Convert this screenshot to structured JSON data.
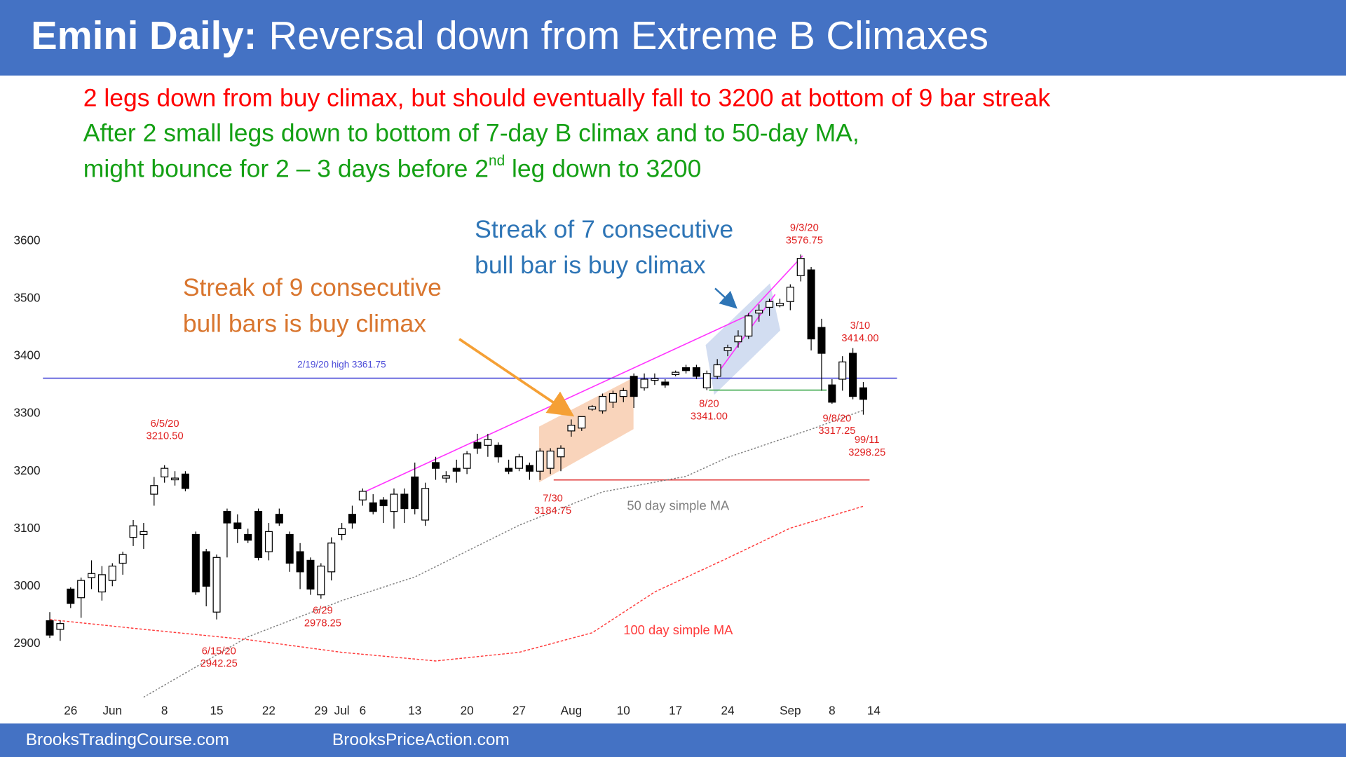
{
  "header": {
    "bold": "Emini Daily:",
    "rest": "Reversal down from Extreme B Climaxes"
  },
  "notes": [
    "2 legs down from buy climax, but should eventually fall to 3200 at bottom of 9 bar streak",
    "After 2 small legs down to bottom of 7-day B climax and to 50-day MA,",
    [
      "might bounce for 2 – 3 days before 2",
      "nd",
      " leg down to 3200"
    ]
  ],
  "callouts": [
    [
      "Streak of 9 consecutive",
      "bull bars is buy climax"
    ],
    [
      "Streak of 7 consecutive",
      "bull bar  is buy climax"
    ]
  ],
  "footer": [
    "BrooksTradingCourse.com",
    "BrooksPriceAction.com"
  ],
  "chart_data": {
    "type": "candlestick",
    "categories": [
      null,
      null,
      "26",
      null,
      null,
      null,
      "Jun",
      null,
      null,
      null,
      null,
      "8",
      null,
      null,
      null,
      null,
      "15",
      null,
      null,
      null,
      null,
      "22",
      null,
      null,
      null,
      null,
      "29",
      null,
      "Jul",
      null,
      "6",
      null,
      null,
      null,
      null,
      "13",
      null,
      null,
      null,
      null,
      "20",
      null,
      null,
      null,
      null,
      "27",
      null,
      null,
      null,
      null,
      "Aug",
      null,
      null,
      null,
      null,
      "10",
      null,
      null,
      null,
      null,
      "17",
      null,
      null,
      null,
      null,
      "24",
      null,
      null,
      null,
      null,
      null,
      "Sep",
      null,
      null,
      null,
      "8",
      null,
      null,
      null,
      "14"
    ],
    "open": [
      2940,
      2925,
      2995,
      2980,
      3015,
      2990,
      3010,
      3040,
      3085,
      3090,
      3160,
      3190,
      3185,
      3195,
      3090,
      3060,
      2955,
      3130,
      3110,
      3090,
      3130,
      3060,
      3125,
      3090,
      3060,
      3045,
      2985,
      3025,
      3090,
      3125,
      3150,
      3145,
      3150,
      3130,
      3160,
      3190,
      3115,
      3215,
      3188,
      3205,
      3205,
      3250,
      3245,
      3245,
      3205,
      3205,
      3210,
      3200,
      3205,
      3225,
      3270,
      3275,
      3308,
      3305,
      3320,
      3330,
      3365,
      3345,
      3358,
      3355,
      3368,
      3380,
      3380,
      3345,
      3365,
      3410,
      3425,
      3435,
      3475,
      3485,
      3488,
      3495,
      3540,
      3550,
      3450,
      3350,
      3360,
      3405,
      3345,
      null
    ],
    "high": [
      2955,
      2940,
      2998,
      3015,
      3045,
      3035,
      3040,
      3060,
      3115,
      3110,
      3190,
      3210.5,
      3200,
      3200,
      3095,
      3065,
      3055,
      3135,
      3125,
      3100,
      3135,
      3110,
      3135,
      3095,
      3075,
      3050,
      3040,
      3085,
      3110,
      3140,
      3170,
      3160,
      3155,
      3170,
      3170,
      3215,
      3180,
      3225,
      3200,
      3220,
      3235,
      3265,
      3265,
      3250,
      3220,
      3230,
      3215,
      3240,
      3240,
      3245,
      3290,
      3295,
      3315,
      3335,
      3340,
      3345,
      3370,
      3370,
      3370,
      3360,
      3375,
      3385,
      3385,
      3375,
      3395,
      3420,
      3445,
      3475,
      3490,
      3500,
      3500,
      3525,
      3576.75,
      3555,
      3465,
      3360,
      3400,
      3414,
      3355,
      null
    ],
    "low": [
      2910,
      2905,
      2962,
      2945,
      2995,
      2975,
      3000,
      3020,
      3070,
      3065,
      3140,
      3180,
      3175,
      3165,
      2985,
      2965,
      2942.25,
      3050,
      3075,
      3075,
      3045,
      3045,
      3105,
      3025,
      2995,
      2985,
      2978.25,
      3010,
      3080,
      3100,
      3140,
      3125,
      3110,
      3100,
      3110,
      3125,
      3105,
      3185,
      3180,
      3180,
      3195,
      3230,
      3225,
      3215,
      3195,
      3200,
      3185,
      3184.75,
      3195,
      3200,
      3260,
      3270,
      3305,
      3300,
      3310,
      3320,
      3310,
      3340,
      3350,
      3345,
      3365,
      3370,
      3360,
      3341,
      3360,
      3400,
      3415,
      3430,
      3460,
      3470,
      3485,
      3480,
      3530,
      3410,
      3340,
      3317.25,
      3340,
      3325,
      3298.25,
      null
    ],
    "close": [
      2915,
      2935,
      2970,
      3010,
      3022,
      3020,
      3035,
      3055,
      3105,
      3095,
      3175,
      3205,
      3188,
      3170,
      2990,
      3000,
      3050,
      3110,
      3100,
      3080,
      3050,
      3095,
      3110,
      3040,
      3025,
      2995,
      3035,
      3075,
      3100,
      3110,
      3165,
      3130,
      3140,
      3160,
      3135,
      3135,
      3170,
      3205,
      3192,
      3200,
      3230,
      3240,
      3255,
      3225,
      3200,
      3225,
      3200,
      3235,
      3235,
      3240,
      3280,
      3295,
      3312,
      3330,
      3335,
      3340,
      3330,
      3360,
      3361,
      3350,
      3372,
      3375,
      3365,
      3370,
      3385,
      3415,
      3435,
      3470,
      3480,
      3495,
      3492,
      3520,
      3570,
      3430,
      3405,
      3320,
      3390,
      3330,
      3325,
      null
    ],
    "series": [
      {
        "name": "50 day simple MA",
        "color": "#7f7f7f",
        "x": [
          9,
          19,
          28,
          35,
          45,
          53,
          61,
          65,
          73,
          78
        ],
        "values": [
          2807,
          2912,
          2975,
          3016,
          3106,
          3164,
          3191,
          3224,
          3273,
          3306
        ]
      },
      {
        "name": "100 day simple MA",
        "color": "#ff3b3b",
        "x": [
          0,
          9,
          19,
          28,
          37,
          45,
          52,
          58,
          65,
          71,
          78
        ],
        "values": [
          2942,
          2925,
          2907,
          2885,
          2870,
          2885,
          2919,
          2990,
          3049,
          3101,
          3139
        ]
      }
    ],
    "hlines": [
      {
        "value": 3361.75,
        "label": "2/19/20 high 3361.75",
        "color": "#4a4ad8"
      },
      {
        "value": 3184.75,
        "color": "#e03535"
      },
      {
        "value": 3341,
        "color": "#3aa84a"
      }
    ],
    "annotations": [
      [
        "6/5/20",
        "3210.50"
      ],
      [
        "6/15/20",
        "2942.25"
      ],
      [
        "6/29",
        "2978.25"
      ],
      [
        "7/30",
        "3184.75"
      ],
      [
        "8/20",
        "3341.00"
      ],
      [
        "9/3/20",
        "3576.75"
      ],
      [
        "3/10",
        "3414.00"
      ],
      [
        "9/8/20",
        "3317.25"
      ],
      [
        "99/11",
        "3298.25"
      ]
    ],
    "ylim": [
      2800,
      3650
    ],
    "yticks": [
      2900,
      3000,
      3100,
      3200,
      3300,
      3400,
      3500,
      3600
    ]
  }
}
